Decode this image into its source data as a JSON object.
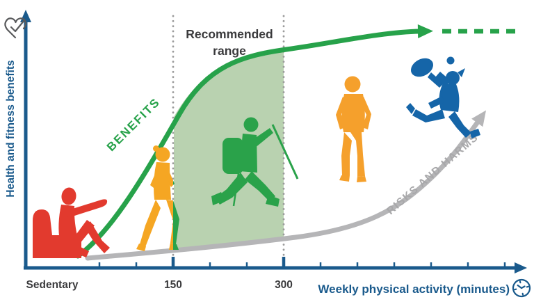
{
  "axes": {
    "y_label": "Health and fitness benefits",
    "x_label": "Weekly physical activity (minutes)",
    "x_tick_labels": {
      "sedentary": "Sedentary",
      "t150": "150",
      "t300": "300"
    },
    "axis_color": "#1a5a8c",
    "tick_minutes": [
      50,
      100,
      150,
      200,
      250,
      300,
      350,
      400,
      450,
      500,
      550,
      600
    ],
    "major_tick_minutes": [
      150,
      300
    ]
  },
  "annotations": {
    "recommended_range_line1": "Recommended",
    "recommended_range_line2": "range",
    "benefits_label": "BENEFITS",
    "risks_label": "RISKS AND HARMS"
  },
  "colors": {
    "benefits_green": "#27a24a",
    "recommended_range_fill": "#b9d2b0",
    "risks_gray": "#b5b5b7",
    "dotted_line_gray": "#9b9b9b",
    "sedentary_red": "#e23a2e",
    "walker_yellow": "#f5a623",
    "walker_green": "#2aa24a",
    "hiker_green": "#2aa24a",
    "runner_orange": "#f5a02c",
    "tennis_blue": "#1565a8",
    "dark_text": "#3a3a3c",
    "axis_blue": "#1a5a8c"
  },
  "icons": {
    "heart_check": "heart-with-checkmark-icon",
    "clock": "clock-icon"
  },
  "chart_data": {
    "type": "line",
    "title": "",
    "xlabel": "Weekly physical activity (minutes)",
    "ylabel": "Health and fitness benefits",
    "x_axis": {
      "start_label": "Sedentary",
      "labeled_ticks": [
        150,
        300
      ],
      "minor_tick_interval_minutes": 50,
      "range_shown_minutes": [
        0,
        620
      ]
    },
    "recommended_range_minutes": [
      150,
      300
    ],
    "series": [
      {
        "name": "BENEFITS",
        "color": "#27a24a",
        "style": "thick solid curve rising steeply then plateauing; continues as dashed arrow",
        "x_minutes": [
          0,
          50,
          100,
          150,
          200,
          250,
          300,
          350,
          400,
          450,
          500,
          550
        ],
        "y_percent": [
          2,
          12,
          34,
          58,
          72,
          81,
          88,
          92,
          95,
          97,
          98,
          98
        ]
      },
      {
        "name": "RISKS AND HARMS",
        "color": "#b5b5b7",
        "style": "thick solid curve nearly flat then rising steeply; ends in upward arrow",
        "x_minutes": [
          0,
          50,
          100,
          150,
          200,
          250,
          300,
          350,
          400,
          450,
          500,
          550
        ],
        "y_percent": [
          2,
          3,
          4,
          6,
          8,
          10,
          13,
          18,
          26,
          38,
          55,
          75
        ]
      }
    ],
    "annotations": [
      {
        "text": "Recommended range",
        "x_range_minutes": [
          150,
          300
        ],
        "shaded": true
      },
      {
        "text": "BENEFITS",
        "along": "benefits curve"
      },
      {
        "text": "RISKS AND HARMS",
        "along": "risks curve"
      }
    ],
    "pictograms": [
      {
        "activity": "sedentary person on couch",
        "color": "#e23a2e",
        "approx_minutes": 0
      },
      {
        "activity": "walker (split yellow/green at 150-minute line)",
        "color": "#f5a623 / #2aa24a",
        "approx_minutes": 150
      },
      {
        "activity": "hiker with backpack and trekking poles",
        "color": "#2aa24a",
        "approx_minutes": 225
      },
      {
        "activity": "runner",
        "color": "#f5a02c",
        "approx_minutes": 390
      },
      {
        "activity": "tennis player",
        "color": "#1565a8",
        "approx_minutes": 510
      }
    ],
    "legend_position": "labels along curves",
    "grid": false
  }
}
